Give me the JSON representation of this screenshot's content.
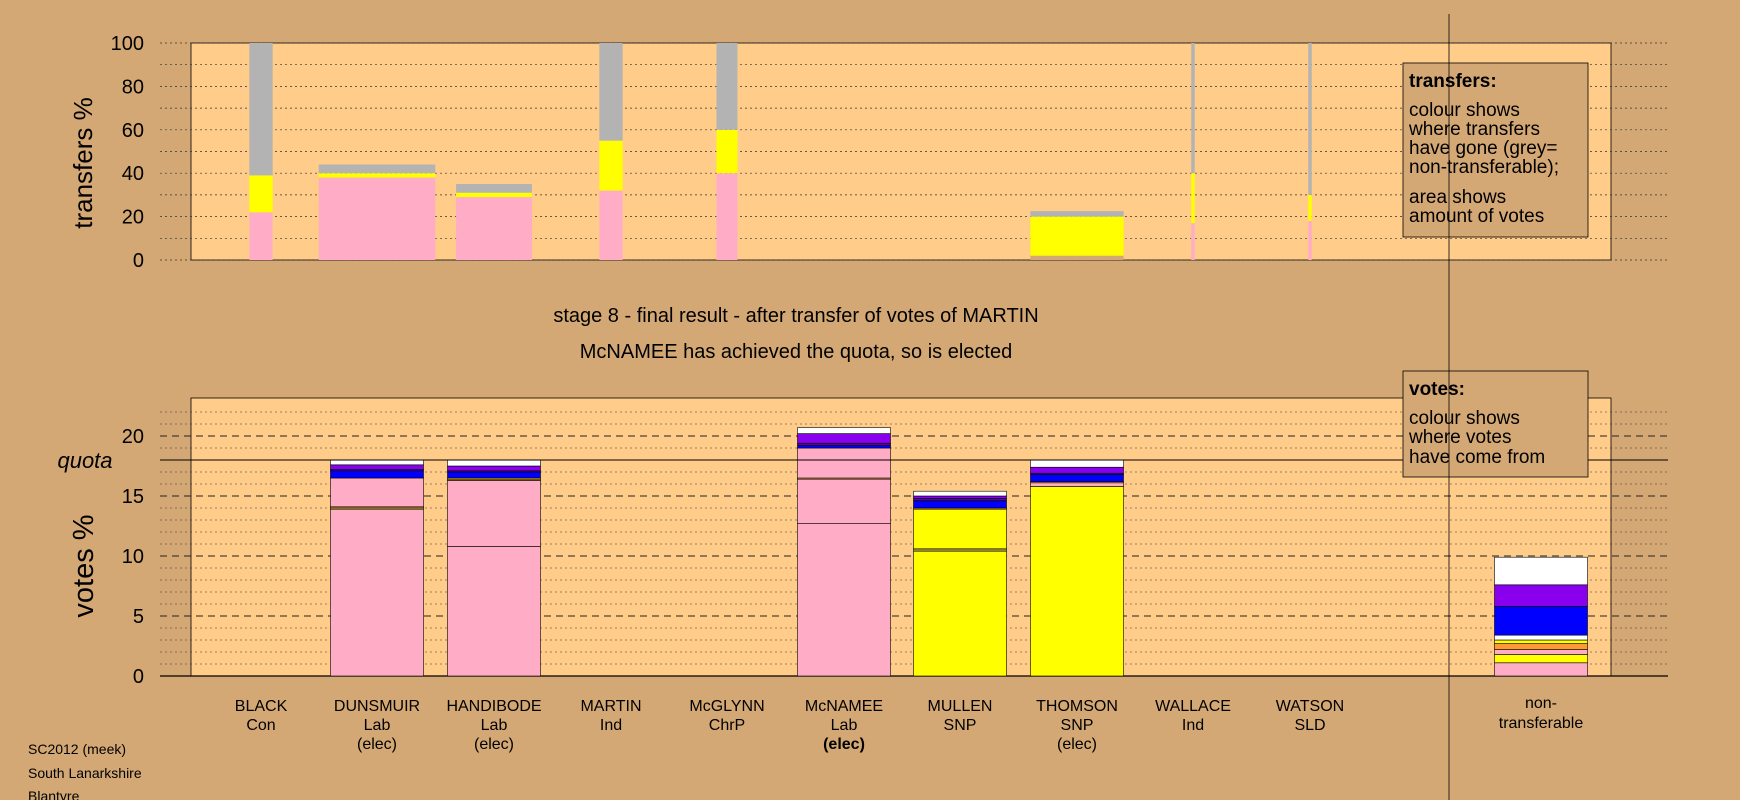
{
  "chart_data": [
    {
      "type": "bar",
      "name": "transfers",
      "ylabel": "transfers %",
      "ylim": [
        0,
        100
      ],
      "yticks": [
        0,
        20,
        40,
        60,
        80,
        100
      ],
      "grid": true,
      "legend": {
        "position": "top-right",
        "title": "transfers:",
        "lines": [
          "colour shows",
          "where transfers",
          "have gone (grey=",
          "non-transferable);",
          "area shows",
          "amount of votes"
        ]
      },
      "bars": [
        {
          "candidate": "BLACK",
          "width": 0.2,
          "segments": [
            {
              "color": "#ffadc6",
              "value": 22
            },
            {
              "color": "#ffff00",
              "value": 17
            },
            {
              "color": "#b3b3b3",
              "value": 61
            }
          ]
        },
        {
          "candidate": "DUNSMUIR",
          "width": 1.0,
          "segments": [
            {
              "color": "#ffadc6",
              "value": 38
            },
            {
              "color": "#ffff00",
              "value": 2
            },
            {
              "color": "#b3b3b3",
              "value": 4
            }
          ]
        },
        {
          "candidate": "HANDIBODE",
          "width": 0.65,
          "segments": [
            {
              "color": "#ffadc6",
              "value": 29
            },
            {
              "color": "#ffff00",
              "value": 2
            },
            {
              "color": "#b3b3b3",
              "value": 4
            }
          ]
        },
        {
          "candidate": "MARTIN",
          "width": 0.2,
          "segments": [
            {
              "color": "#ffadc6",
              "value": 32
            },
            {
              "color": "#ffff00",
              "value": 23
            },
            {
              "color": "#b3b3b3",
              "value": 45
            }
          ]
        },
        {
          "candidate": "McGLYNN",
          "width": 0.18,
          "segments": [
            {
              "color": "#ffadc6",
              "value": 40
            },
            {
              "color": "#ffff00",
              "value": 20
            },
            {
              "color": "#b3b3b3",
              "value": 40
            }
          ]
        },
        {
          "candidate": "McNAMEE",
          "width": 0,
          "segments": []
        },
        {
          "candidate": "MULLEN",
          "width": 0,
          "segments": []
        },
        {
          "candidate": "THOMSON",
          "width": 0.8,
          "segments": [
            {
              "color": "#d4a875",
              "value": 2
            },
            {
              "color": "#ffff00",
              "value": 18
            },
            {
              "color": "#b3b3b3",
              "value": 2.5
            }
          ]
        },
        {
          "candidate": "WALLACE",
          "width": 0.03,
          "segments": [
            {
              "color": "#ffadc6",
              "value": 17
            },
            {
              "color": "#ffff00",
              "value": 23
            },
            {
              "color": "#b3b3b3",
              "value": 60
            }
          ]
        },
        {
          "candidate": "WATSON",
          "width": 0.03,
          "segments": [
            {
              "color": "#ffadc6",
              "value": 18
            },
            {
              "color": "#ffff00",
              "value": 12
            },
            {
              "color": "#b3b3b3",
              "value": 70
            }
          ]
        }
      ]
    },
    {
      "type": "bar",
      "name": "votes",
      "ylabel": "votes %",
      "ylim": [
        0,
        23
      ],
      "yticks": [
        0,
        5,
        10,
        15,
        20
      ],
      "quota": 18.0,
      "quota_label": "quota",
      "grid": true,
      "legend": {
        "position": "top-right",
        "title": "votes:",
        "lines": [
          "colour shows",
          "where votes",
          "have come from"
        ]
      },
      "candidates": [
        {
          "name": "BLACK",
          "party": "Con",
          "elected": false,
          "status": "",
          "bar": false,
          "segments": []
        },
        {
          "name": "DUNSMUIR",
          "party": "Lab",
          "elected": true,
          "status": "(elec)",
          "bar": true,
          "segments": [
            {
              "color": "#ffadc6",
              "value": 13.9
            },
            {
              "color": "#ffff00",
              "value": 0.1
            },
            {
              "color": "#ff9933",
              "value": 0.1
            },
            {
              "color": "#ffadc6",
              "value": 2.4
            },
            {
              "color": "#0000ff",
              "value": 0.6
            },
            {
              "color": "#5500aa",
              "value": 0.1
            },
            {
              "color": "#8800ee",
              "value": 0.4
            },
            {
              "color": "#ffffff",
              "value": 0.4
            }
          ]
        },
        {
          "name": "HANDIBODE",
          "party": "Lab",
          "elected": true,
          "status": "(elec)",
          "bar": true,
          "segments": [
            {
              "color": "#ffadc6",
              "value": 10.8
            },
            {
              "color": "#ffadc6",
              "value": 5.5
            },
            {
              "color": "#ff9933",
              "value": 0.1
            },
            {
              "color": "#ffff00",
              "value": 0.1
            },
            {
              "color": "#0000ff",
              "value": 0.5
            },
            {
              "color": "#5500aa",
              "value": 0.1
            },
            {
              "color": "#8800ee",
              "value": 0.4
            },
            {
              "color": "#ffffff",
              "value": 0.5
            }
          ]
        },
        {
          "name": "MARTIN",
          "party": "Ind",
          "elected": false,
          "status": "",
          "bar": false,
          "segments": []
        },
        {
          "name": "McGLYNN",
          "party": "ChrP",
          "elected": false,
          "status": "",
          "bar": false,
          "segments": []
        },
        {
          "name": "McNAMEE",
          "party": "Lab",
          "elected": true,
          "status": "(elec)",
          "status_bold": true,
          "bar": true,
          "segments": [
            {
              "color": "#ffadc6",
              "value": 12.7
            },
            {
              "color": "#ffadc6",
              "value": 3.7
            },
            {
              "color": "#ff9933",
              "value": 0.1
            },
            {
              "color": "#ffadc6",
              "value": 2.5
            },
            {
              "color": "#0000ff",
              "value": 0.2
            },
            {
              "color": "#5500aa",
              "value": 0.2
            },
            {
              "color": "#8800ee",
              "value": 0.8
            },
            {
              "color": "#ffffff",
              "value": 0.5
            }
          ]
        },
        {
          "name": "MULLEN",
          "party": "SNP",
          "elected": false,
          "status": "",
          "bar": true,
          "segments": [
            {
              "color": "#ffff00",
              "value": 10.4
            },
            {
              "color": "#a09040",
              "value": 0.2
            },
            {
              "color": "#ffff00",
              "value": 3.3
            },
            {
              "color": "#ff9933",
              "value": 0.1
            },
            {
              "color": "#0000ff",
              "value": 0.6
            },
            {
              "color": "#5500aa",
              "value": 0.2
            },
            {
              "color": "#8800ee",
              "value": 0.2
            },
            {
              "color": "#ffffff",
              "value": 0.4
            }
          ]
        },
        {
          "name": "THOMSON",
          "party": "SNP",
          "elected": true,
          "status": "(elec)",
          "bar": true,
          "segments": [
            {
              "color": "#ffff00",
              "value": 15.8
            },
            {
              "color": "#ffadc6",
              "value": 0.3
            },
            {
              "color": "#ff9933",
              "value": 0.1
            },
            {
              "color": "#0000ff",
              "value": 0.6
            },
            {
              "color": "#5500aa",
              "value": 0.1
            },
            {
              "color": "#8800ee",
              "value": 0.5
            },
            {
              "color": "#ffffff",
              "value": 0.6
            }
          ]
        },
        {
          "name": "WALLACE",
          "party": "Ind",
          "elected": false,
          "status": "",
          "bar": false,
          "segments": []
        },
        {
          "name": "WATSON",
          "party": "SLD",
          "elected": false,
          "status": "",
          "bar": false,
          "segments": []
        }
      ],
      "nontransferable": {
        "label_lines": [
          "non-",
          "transferable"
        ],
        "segments": [
          {
            "color": "#ffadc6",
            "value": 1.1
          },
          {
            "color": "#ffff00",
            "value": 0.7
          },
          {
            "color": "#ffadc6",
            "value": 0.4
          },
          {
            "color": "#ff9933",
            "value": 0.5
          },
          {
            "color": "#ffff00",
            "value": 0.3
          },
          {
            "color": "#ffffff",
            "value": 0.4
          },
          {
            "color": "#0000ff",
            "value": 2.4
          },
          {
            "color": "#8800ee",
            "value": 1.8
          },
          {
            "color": "#ffffff",
            "value": 2.3
          }
        ]
      }
    }
  ],
  "stage_title": "stage 8 - final result - after transfer of votes of MARTIN",
  "stage_subtitle": "McNAMEE has achieved the quota, so is elected",
  "footer": [
    "SC2012 (meek)",
    "South Lanarkshire",
    "Blantyre"
  ],
  "colors": {
    "background": "#d4a875",
    "plot_background": "#ffcc8a",
    "non_transferable": "#b3b3b3",
    "labour": "#ffadc6",
    "snp": "#ffff00"
  }
}
